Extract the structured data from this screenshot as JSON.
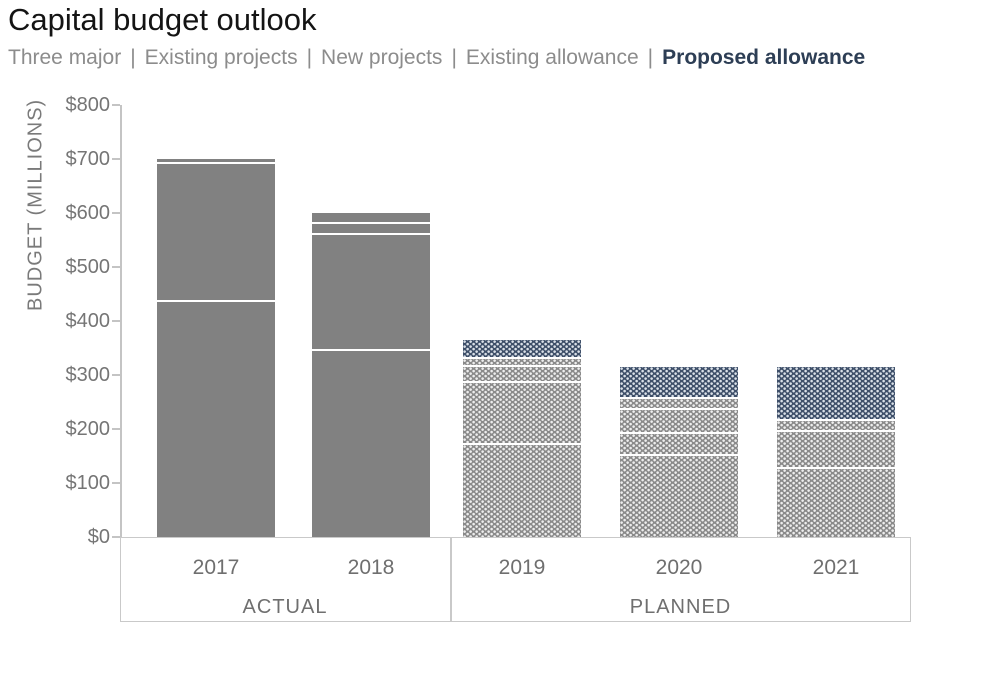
{
  "title": "Capital budget outlook",
  "legend": {
    "separator": "|",
    "items": [
      {
        "label": "Three major",
        "emphasis": false
      },
      {
        "label": "Existing projects",
        "emphasis": false
      },
      {
        "label": "New projects",
        "emphasis": false
      },
      {
        "label": "Existing allowance",
        "emphasis": false
      },
      {
        "label": "Proposed allowance",
        "emphasis": true
      }
    ]
  },
  "chart_data": {
    "type": "bar",
    "stacked": true,
    "title": "Capital budget outlook",
    "ylabel": "BUDGET (MILLIONS)",
    "ylim": [
      0,
      800
    ],
    "ytick_step": 100,
    "yticks": [
      {
        "value": 800,
        "label": "$800"
      },
      {
        "value": 700,
        "label": "$700"
      },
      {
        "value": 600,
        "label": "$600"
      },
      {
        "value": 500,
        "label": "$500"
      },
      {
        "value": 400,
        "label": "$400"
      },
      {
        "value": 300,
        "label": "$300"
      },
      {
        "value": 200,
        "label": "$200"
      },
      {
        "value": 100,
        "label": "$100"
      },
      {
        "value": 0,
        "label": "$0"
      }
    ],
    "categories": [
      "2017",
      "2018",
      "2019",
      "2020",
      "2021"
    ],
    "series": [
      {
        "name": "Three major",
        "values": [
          435,
          345,
          170,
          150,
          125
        ]
      },
      {
        "name": "Existing projects",
        "values": [
          255,
          215,
          115,
          40,
          70
        ]
      },
      {
        "name": "New projects",
        "values": [
          10,
          20,
          30,
          45,
          0
        ]
      },
      {
        "name": "Existing allowance",
        "values": [
          0,
          20,
          15,
          20,
          20
        ]
      },
      {
        "name": "Proposed allowance",
        "values": [
          0,
          0,
          35,
          60,
          100
        ]
      }
    ],
    "totals": [
      700,
      600,
      365,
      315,
      315
    ],
    "groups": [
      {
        "label": "ACTUAL",
        "categories": [
          "2017",
          "2018"
        ],
        "fill": "solid"
      },
      {
        "label": "PLANNED",
        "categories": [
          "2019",
          "2020",
          "2021"
        ],
        "fill": "patterned"
      }
    ],
    "grid": false,
    "legend_position": "top"
  },
  "colors": {
    "title_text": "#141414",
    "legend_text": "#8c8c8c",
    "legend_emphasis": "#2d3e55",
    "solid_gray": "#818181",
    "pattern_gray": "#8a8a8a",
    "pattern_navy": "#3e4f69",
    "axis_text": "#757575",
    "axis_line": "#c4c4c4"
  }
}
